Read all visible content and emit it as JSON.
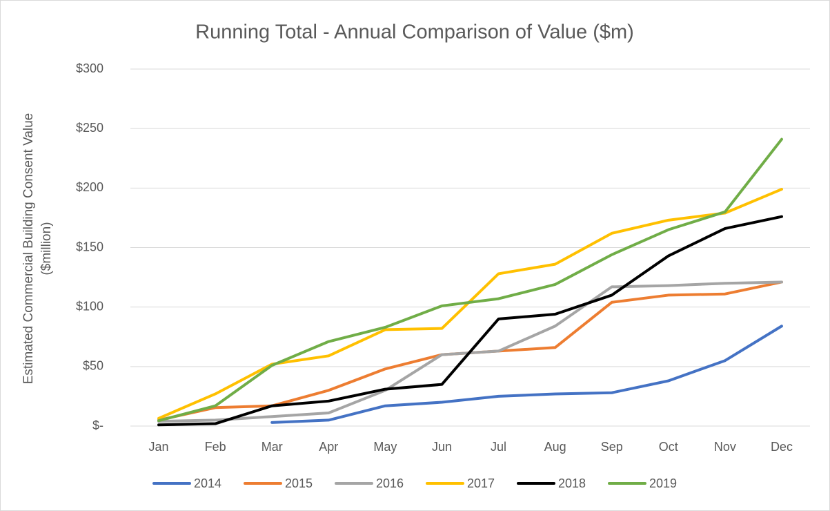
{
  "chart_data": {
    "type": "line",
    "title": "Running Total - Annual Comparison of Value ($m)",
    "y_label": "Estimated Commercial Building Consent Value ($million)",
    "categories": [
      "Jan",
      "Feb",
      "Mar",
      "Apr",
      "May",
      "Jun",
      "Jul",
      "Aug",
      "Sep",
      "Oct",
      "Nov",
      "Dec"
    ],
    "series": [
      {
        "name": "2014",
        "color": "#4472c4",
        "values": [
          null,
          null,
          3,
          5,
          17,
          20,
          25,
          27,
          28,
          38,
          55,
          84
        ]
      },
      {
        "name": "2015",
        "color": "#ed7d31",
        "values": [
          5,
          15.5,
          17,
          30,
          48,
          60,
          63,
          66,
          104,
          110,
          111,
          121
        ]
      },
      {
        "name": "2016",
        "color": "#a5a5a5",
        "values": [
          4,
          5,
          8,
          11,
          30,
          60,
          63,
          84,
          117,
          118,
          120,
          121
        ]
      },
      {
        "name": "2017",
        "color": "#ffc000",
        "values": [
          6.5,
          27,
          52,
          59,
          81,
          82,
          128,
          136,
          162,
          173,
          179,
          199
        ]
      },
      {
        "name": "2018",
        "color": "#000000",
        "values": [
          1,
          2,
          17,
          21,
          31,
          35,
          90,
          94,
          110,
          143,
          166,
          176
        ]
      },
      {
        "name": "2019",
        "color": "#70ad47",
        "values": [
          4.5,
          17,
          51,
          71,
          83,
          101,
          107,
          119,
          144,
          165,
          180,
          241
        ]
      }
    ],
    "ylim": [
      0,
      300
    ],
    "yticks": [
      {
        "value": 0,
        "label": "$-"
      },
      {
        "value": 50,
        "label": "$50"
      },
      {
        "value": 100,
        "label": "$100"
      },
      {
        "value": 150,
        "label": "$150"
      },
      {
        "value": 200,
        "label": "$200"
      },
      {
        "value": 250,
        "label": "$250"
      },
      {
        "value": 300,
        "label": "$300"
      }
    ],
    "grid": true,
    "legend": "bottom"
  }
}
